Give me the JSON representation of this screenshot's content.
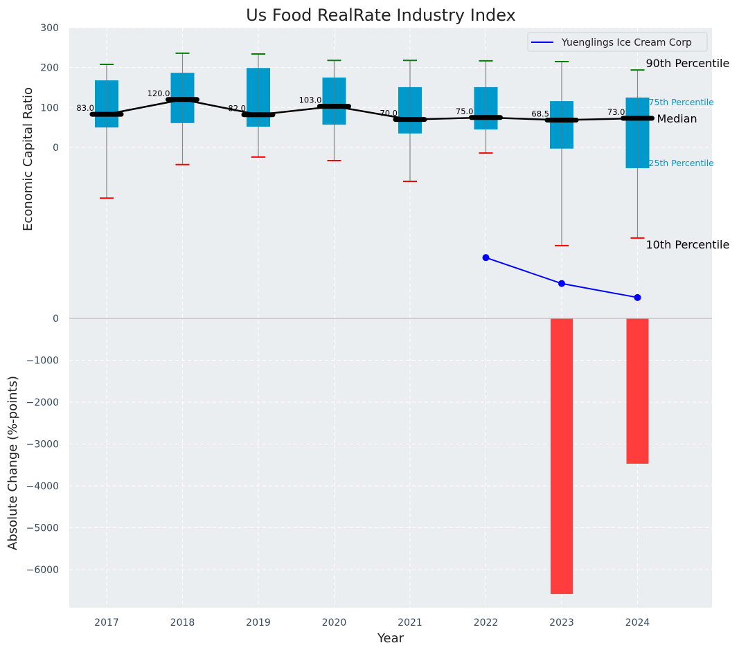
{
  "chart_data": [
    {
      "type": "box",
      "title": "Us Food RealRate Industry Index",
      "xlabel": "",
      "ylabel": "Economic Capital Ratio",
      "ylim": [
        -430,
        300
      ],
      "yticks": [
        0,
        100,
        200,
        300
      ],
      "categories": [
        "2017",
        "2018",
        "2019",
        "2020",
        "2021",
        "2022",
        "2023",
        "2024"
      ],
      "grid": true,
      "percentiles": {
        "p90": [
          208,
          236,
          234,
          218,
          218,
          217,
          215,
          194
        ],
        "p75": [
          168,
          187,
          199,
          175,
          151,
          151,
          116,
          125
        ],
        "median": [
          83.0,
          120.0,
          82.0,
          103.0,
          70.0,
          75.0,
          68.5,
          73.0
        ],
        "p25": [
          50,
          61,
          52,
          57,
          35,
          45,
          -3,
          -52
        ],
        "p10": [
          -127,
          -43,
          -24,
          -33,
          -85,
          -14,
          -246,
          -227
        ]
      },
      "median_labels": [
        "83.0",
        "120.0",
        "82.0",
        "103.0",
        "70.0",
        "75.0",
        "68.5",
        "73.0"
      ],
      "series": [
        {
          "name": "Yuenglings Ice Cream Corp",
          "type": "line",
          "color": "#0000ff",
          "x": [
            "2022",
            "2023",
            "2024"
          ],
          "values": [
            -276,
            -341,
            -376
          ]
        }
      ],
      "legend": {
        "position": "top-right",
        "entries": [
          "Yuenglings Ice Cream Corp"
        ]
      },
      "annotations": {
        "p90": "90th Percentile",
        "p75": "75th Percentile",
        "median": "Median",
        "p25": "25th Percentile",
        "p10": "10th Percentile"
      },
      "colors": {
        "box": "#0099cc",
        "p90_cap": "#008000",
        "p10_cap": "#ff0000",
        "median": "#000000",
        "background": "#eaeef0"
      }
    },
    {
      "type": "bar",
      "title": "",
      "xlabel": "Year",
      "ylabel": "Absolute Change (%-points)",
      "ylim": [
        -6900,
        0
      ],
      "yticks": [
        0,
        -1000,
        -2000,
        -3000,
        -4000,
        -5000,
        -6000
      ],
      "ytick_labels": [
        "0",
        "−1000",
        "−2000",
        "−3000",
        "−4000",
        "−5000",
        "−6000"
      ],
      "categories": [
        "2017",
        "2018",
        "2019",
        "2020",
        "2021",
        "2022",
        "2023",
        "2024"
      ],
      "values": [
        null,
        null,
        null,
        null,
        null,
        null,
        -6580,
        -3470
      ],
      "grid": true,
      "colors": {
        "bar": "#ff3d3d"
      }
    }
  ]
}
